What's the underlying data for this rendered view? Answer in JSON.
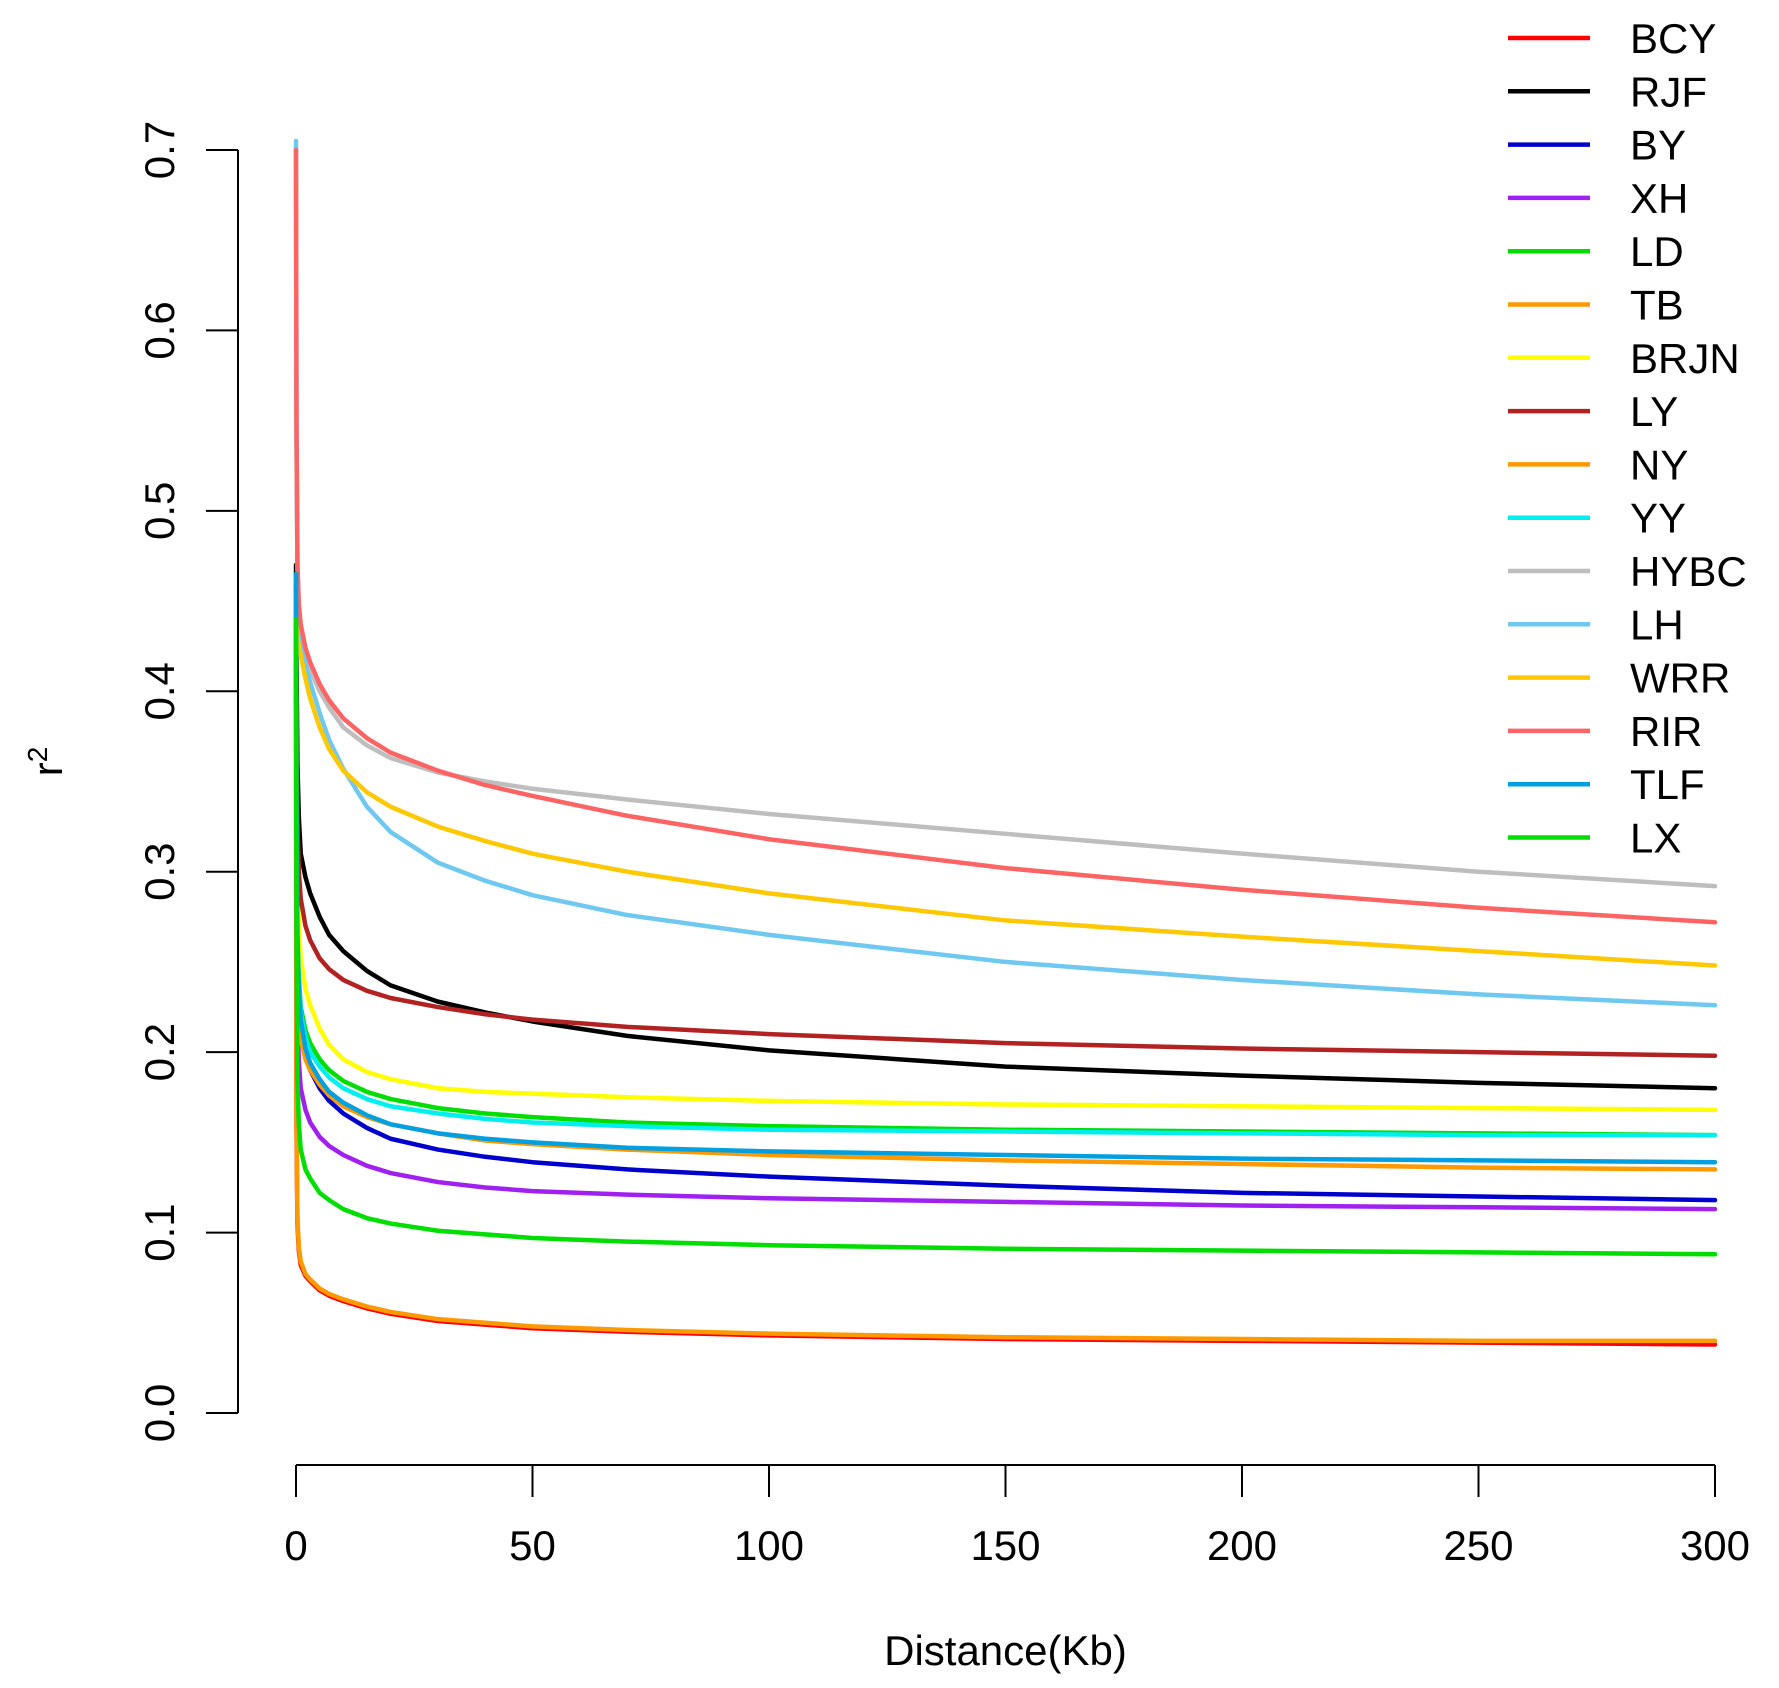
{
  "chart_data": {
    "type": "line",
    "title": "",
    "xlabel": "Distance(Kb)",
    "ylabel": "r",
    "ylabel_superscript": "2",
    "xlim": [
      0,
      300
    ],
    "ylim": [
      0,
      0.7
    ],
    "x_ticks": [
      0,
      50,
      100,
      150,
      200,
      250,
      300
    ],
    "y_ticks": [
      0.0,
      0.1,
      0.2,
      0.3,
      0.4,
      0.5,
      0.6,
      0.7
    ],
    "x_tick_labels": [
      "0",
      "50",
      "100",
      "150",
      "200",
      "250",
      "300"
    ],
    "y_tick_labels": [
      "0.0",
      "0.1",
      "0.2",
      "0.3",
      "0.4",
      "0.5",
      "0.6",
      "0.7"
    ],
    "grid": false,
    "legend_position": "top-right",
    "x": [
      0,
      0.1,
      0.3,
      0.6,
      1,
      2,
      3,
      5,
      7,
      10,
      15,
      20,
      30,
      40,
      50,
      70,
      100,
      150,
      200,
      250,
      300
    ],
    "series": [
      {
        "name": "BCY",
        "color": "#ff0000",
        "values": [
          0.44,
          0.16,
          0.105,
          0.09,
          0.082,
          0.076,
          0.073,
          0.068,
          0.065,
          0.062,
          0.058,
          0.055,
          0.051,
          0.049,
          0.047,
          0.045,
          0.043,
          0.041,
          0.04,
          0.039,
          0.038
        ]
      },
      {
        "name": "RJF",
        "color": "#000000",
        "values": [
          0.47,
          0.42,
          0.36,
          0.33,
          0.31,
          0.297,
          0.288,
          0.275,
          0.265,
          0.256,
          0.245,
          0.237,
          0.228,
          0.222,
          0.217,
          0.209,
          0.201,
          0.192,
          0.187,
          0.183,
          0.18
        ]
      },
      {
        "name": "BY",
        "color": "#0000cd",
        "values": [
          0.45,
          0.34,
          0.26,
          0.23,
          0.212,
          0.198,
          0.19,
          0.18,
          0.173,
          0.166,
          0.158,
          0.152,
          0.146,
          0.142,
          0.139,
          0.135,
          0.131,
          0.126,
          0.122,
          0.12,
          0.118
        ]
      },
      {
        "name": "XH",
        "color": "#a020f0",
        "values": [
          0.44,
          0.3,
          0.22,
          0.195,
          0.18,
          0.168,
          0.161,
          0.153,
          0.148,
          0.143,
          0.137,
          0.133,
          0.128,
          0.125,
          0.123,
          0.121,
          0.119,
          0.117,
          0.115,
          0.114,
          0.113
        ]
      },
      {
        "name": "LD",
        "color": "#00dd00",
        "values": [
          0.45,
          0.35,
          0.27,
          0.242,
          0.225,
          0.212,
          0.205,
          0.196,
          0.19,
          0.184,
          0.178,
          0.174,
          0.169,
          0.166,
          0.164,
          0.161,
          0.159,
          0.157,
          0.156,
          0.155,
          0.154
        ]
      },
      {
        "name": "TB",
        "color": "#ff9900",
        "values": [
          0.45,
          0.33,
          0.25,
          0.222,
          0.207,
          0.196,
          0.19,
          0.182,
          0.176,
          0.17,
          0.164,
          0.16,
          0.155,
          0.151,
          0.149,
          0.146,
          0.143,
          0.14,
          0.138,
          0.136,
          0.135
        ]
      },
      {
        "name": "BRJN",
        "color": "#ffff00",
        "values": [
          0.45,
          0.38,
          0.3,
          0.27,
          0.252,
          0.235,
          0.226,
          0.213,
          0.204,
          0.196,
          0.189,
          0.185,
          0.18,
          0.178,
          0.177,
          0.175,
          0.173,
          0.171,
          0.17,
          0.169,
          0.168
        ]
      },
      {
        "name": "LY",
        "color": "#b22222",
        "values": [
          0.46,
          0.39,
          0.33,
          0.3,
          0.285,
          0.27,
          0.262,
          0.252,
          0.246,
          0.24,
          0.234,
          0.23,
          0.225,
          0.221,
          0.218,
          0.214,
          0.21,
          0.205,
          0.202,
          0.2,
          0.198
        ]
      },
      {
        "name": "NY",
        "color": "#ff9900",
        "values": [
          0.44,
          0.17,
          0.108,
          0.092,
          0.084,
          0.077,
          0.074,
          0.069,
          0.066,
          0.063,
          0.059,
          0.056,
          0.052,
          0.05,
          0.048,
          0.046,
          0.044,
          0.042,
          0.041,
          0.04,
          0.04
        ]
      },
      {
        "name": "YY",
        "color": "#00eeee",
        "values": [
          0.45,
          0.34,
          0.265,
          0.238,
          0.222,
          0.208,
          0.2,
          0.192,
          0.186,
          0.18,
          0.174,
          0.17,
          0.166,
          0.163,
          0.161,
          0.159,
          0.157,
          0.156,
          0.155,
          0.154,
          0.154
        ]
      },
      {
        "name": "HYBC",
        "color": "#bebebe",
        "values": [
          0.7,
          0.54,
          0.47,
          0.445,
          0.435,
          0.42,
          0.412,
          0.4,
          0.391,
          0.38,
          0.37,
          0.363,
          0.355,
          0.35,
          0.346,
          0.34,
          0.332,
          0.321,
          0.31,
          0.3,
          0.292
        ]
      },
      {
        "name": "LH",
        "color": "#6ec8f0",
        "values": [
          0.705,
          0.55,
          0.47,
          0.445,
          0.43,
          0.415,
          0.405,
          0.388,
          0.373,
          0.357,
          0.336,
          0.322,
          0.305,
          0.295,
          0.287,
          0.276,
          0.265,
          0.25,
          0.24,
          0.232,
          0.226
        ]
      },
      {
        "name": "WRR",
        "color": "#ffc800",
        "values": [
          0.45,
          0.44,
          0.43,
          0.425,
          0.42,
          0.407,
          0.396,
          0.38,
          0.368,
          0.356,
          0.344,
          0.336,
          0.325,
          0.317,
          0.31,
          0.3,
          0.288,
          0.273,
          0.264,
          0.256,
          0.248
        ]
      },
      {
        "name": "RIR",
        "color": "#ff6464",
        "values": [
          0.7,
          0.55,
          0.47,
          0.448,
          0.437,
          0.424,
          0.416,
          0.404,
          0.395,
          0.385,
          0.374,
          0.366,
          0.356,
          0.348,
          0.342,
          0.331,
          0.318,
          0.302,
          0.29,
          0.28,
          0.272
        ]
      },
      {
        "name": "TLF",
        "color": "#00a0e0",
        "values": [
          0.465,
          0.35,
          0.265,
          0.235,
          0.218,
          0.202,
          0.194,
          0.185,
          0.178,
          0.172,
          0.165,
          0.16,
          0.155,
          0.152,
          0.15,
          0.147,
          0.145,
          0.143,
          0.141,
          0.14,
          0.139
        ]
      },
      {
        "name": "LX",
        "color": "#00dd00",
        "values": [
          0.44,
          0.27,
          0.185,
          0.16,
          0.146,
          0.135,
          0.13,
          0.122,
          0.118,
          0.113,
          0.108,
          0.105,
          0.101,
          0.099,
          0.097,
          0.095,
          0.093,
          0.091,
          0.09,
          0.089,
          0.088
        ]
      }
    ]
  }
}
